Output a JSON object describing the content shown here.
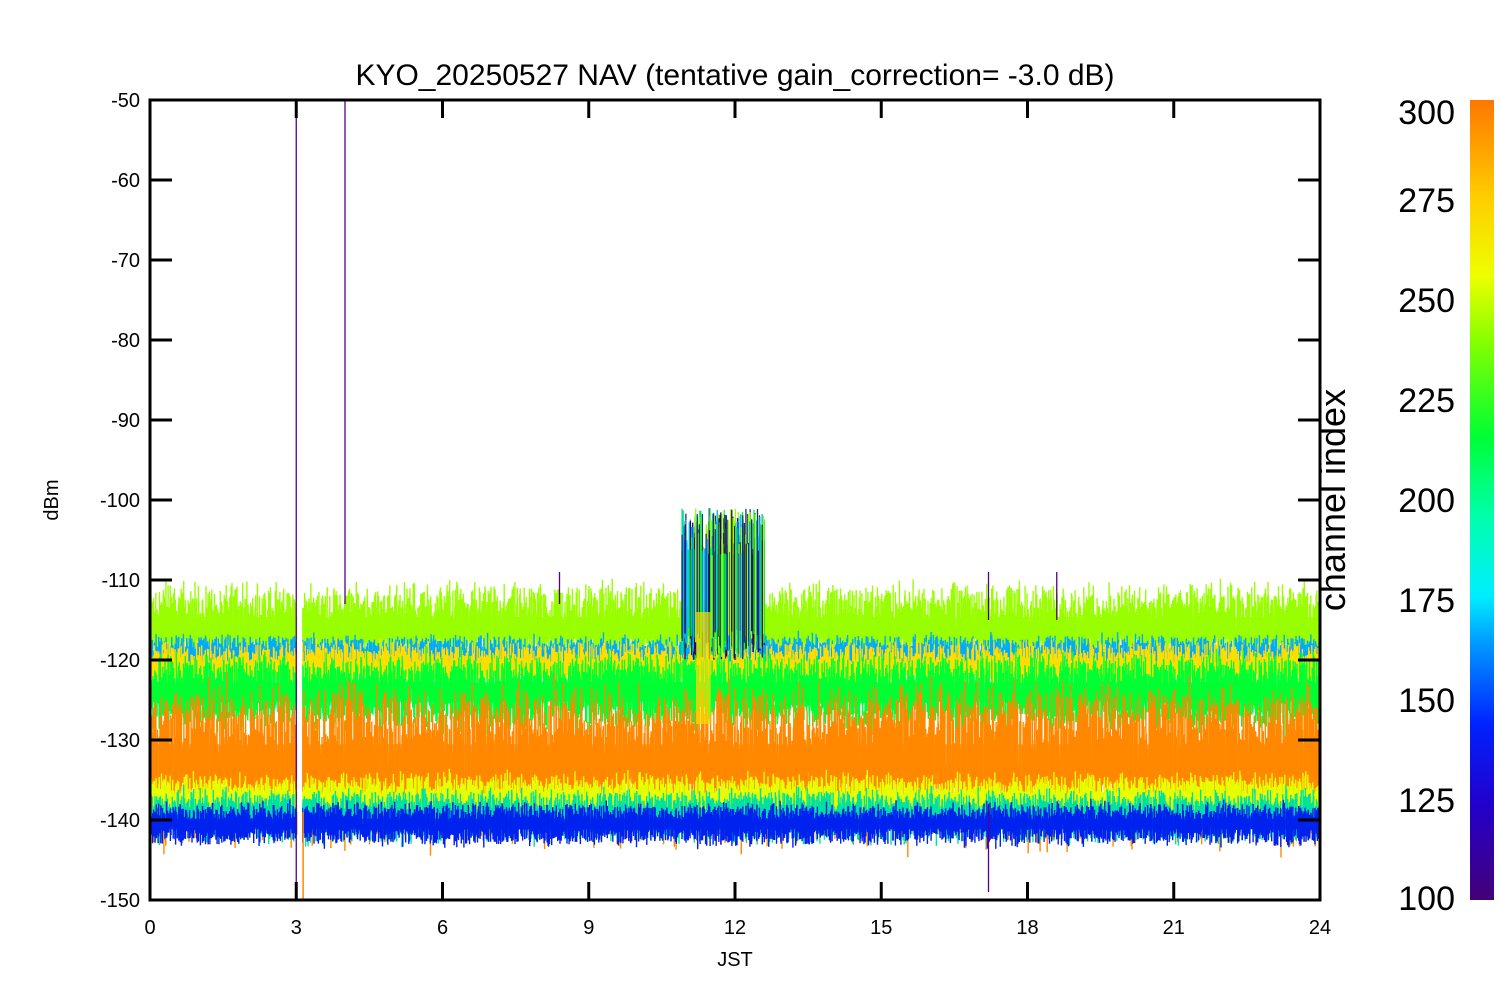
{
  "chart_data": {
    "type": "scatter",
    "title": "KYO_20250527 NAV (tentative gain_correction= -3.0 dB)",
    "xlabel": "JST",
    "ylabel": "dBm",
    "xlim": [
      0,
      24
    ],
    "ylim": [
      -150,
      -50
    ],
    "xticks": [
      "0",
      "3",
      "6",
      "9",
      "12",
      "15",
      "18",
      "21",
      "24"
    ],
    "yticks": [
      "-50",
      "-60",
      "-70",
      "-80",
      "-90",
      "-100",
      "-110",
      "-120",
      "-130",
      "-140",
      "-150"
    ],
    "grid": false,
    "colorbar": {
      "label": "channel index",
      "range": [
        100,
        300
      ],
      "ticks": [
        "300",
        "275",
        "250",
        "225",
        "200",
        "175",
        "150",
        "125",
        "100"
      ],
      "colormap": "rainbow"
    },
    "bands": [
      {
        "channel_index": 255,
        "color": "#99ff00",
        "y_center": -116,
        "y_spread": 2.5
      },
      {
        "channel_index": 170,
        "color": "#00aaff",
        "y_center": -119.5,
        "y_spread": 1.2
      },
      {
        "channel_index": 280,
        "color": "#ffdd00",
        "y_center": -121,
        "y_spread": 1.5
      },
      {
        "channel_index": 230,
        "color": "#00ff33",
        "y_center": -124,
        "y_spread": 2.2
      },
      {
        "channel_index": 295,
        "color": "#ff8800",
        "y_center": -133,
        "y_spread": 4.5
      },
      {
        "channel_index": 265,
        "color": "#e6ff00",
        "y_center": -137.5,
        "y_spread": 1.5
      },
      {
        "channel_index": 200,
        "color": "#00e0a0",
        "y_center": -139.5,
        "y_spread": 1.5
      },
      {
        "channel_index": 140,
        "color": "#0022ee",
        "y_center": -140.5,
        "y_spread": 1.2
      }
    ],
    "spikes": [
      {
        "x": 3.0,
        "y_top": -50,
        "y_bottom": -150,
        "color": "#550088"
      },
      {
        "x": 4.0,
        "y_top": -50,
        "y_bottom": -113,
        "color": "#550088"
      },
      {
        "x": 8.4,
        "y_top": -109,
        "y_bottom": -113,
        "color": "#550088"
      },
      {
        "x": 17.2,
        "y_top": -109,
        "y_bottom": -115,
        "color": "#550088"
      },
      {
        "x": 17.2,
        "y_top": -138,
        "y_bottom": -149,
        "color": "#550088"
      },
      {
        "x": 18.6,
        "y_top": -109,
        "y_bottom": -115,
        "color": "#550088"
      }
    ],
    "gap": {
      "x_start": 3.02,
      "x_end": 3.12
    },
    "burst": {
      "x_start": 10.9,
      "x_end": 12.6,
      "y_top": -99,
      "y_bottom": -116,
      "colors": [
        "#00ff33",
        "#1a3a5a",
        "#00aaff",
        "#99ff00",
        "#2a0060"
      ]
    }
  }
}
